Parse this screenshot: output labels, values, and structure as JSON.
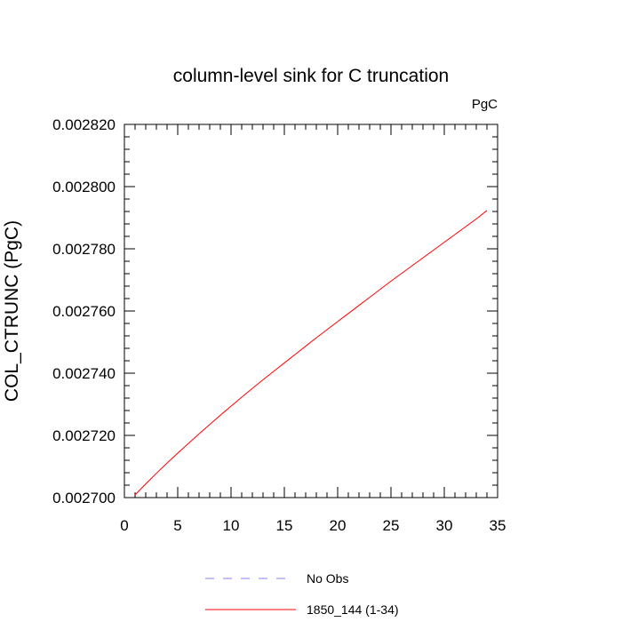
{
  "chart_data": {
    "type": "line",
    "title": "column-level sink for C truncation",
    "units_label": "PgC",
    "xlabel": "",
    "ylabel": "COL_CTRUNC  (PgC)",
    "xlim": [
      0,
      35
    ],
    "ylim": [
      0.0027,
      0.00282
    ],
    "x_ticks": [
      0,
      5,
      10,
      15,
      20,
      25,
      30,
      35
    ],
    "x_tick_labels": [
      "0",
      "5",
      "10",
      "15",
      "20",
      "25",
      "30",
      "35"
    ],
    "y_ticks": [
      0.0027,
      0.00272,
      0.00274,
      0.00276,
      0.00278,
      0.0028,
      0.00282
    ],
    "y_tick_labels": [
      "0.002700",
      "0.002720",
      "0.002740",
      "0.002760",
      "0.002780",
      "0.002800",
      "0.002820"
    ],
    "grid": false,
    "legend_position": "bottom",
    "series": [
      {
        "name": "1850_144 (1-34)",
        "color": "#ff0000",
        "style": "solid",
        "x": [
          1,
          2,
          3,
          4,
          5,
          6,
          7,
          8,
          9,
          10,
          11,
          12,
          13,
          14,
          15,
          16,
          17,
          18,
          19,
          20,
          21,
          22,
          23,
          24,
          25,
          26,
          27,
          28,
          29,
          30,
          31,
          32,
          33,
          34
        ],
        "y": [
          0.0027009,
          0.0027044,
          0.0027078,
          0.0027111,
          0.0027143,
          0.0027174,
          0.0027205,
          0.0027235,
          0.0027265,
          0.0027294,
          0.0027323,
          0.0027351,
          0.0027379,
          0.0027406,
          0.0027433,
          0.002746,
          0.0027487,
          0.0027514,
          0.002754,
          0.0027566,
          0.0027592,
          0.0027618,
          0.0027644,
          0.002767,
          0.0027696,
          0.0027721,
          0.0027746,
          0.0027771,
          0.0027796,
          0.0027821,
          0.0027846,
          0.0027871,
          0.0027896,
          0.0027923
        ]
      }
    ],
    "legend": [
      {
        "label": "No Obs",
        "color": "#8080ff",
        "style": "dashed"
      },
      {
        "label": "1850_144 (1-34)",
        "color": "#ff0000",
        "style": "solid"
      }
    ]
  }
}
